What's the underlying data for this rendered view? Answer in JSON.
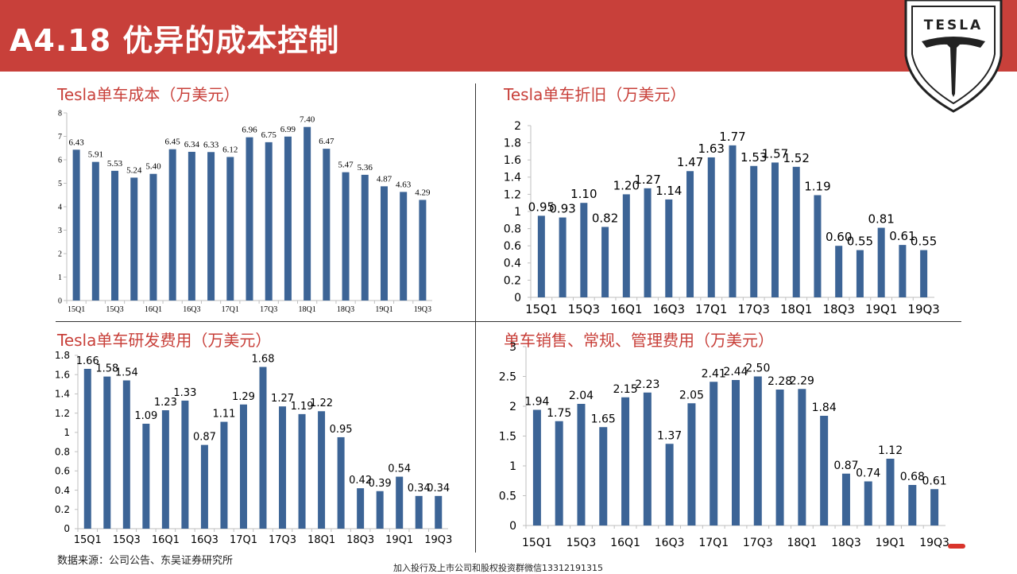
{
  "header": {
    "title": "A4.18  优异的成本控制",
    "logo_text": "TESLA"
  },
  "colors": {
    "header_bg": "#c8403a",
    "title_red": "#c8403a",
    "bar_blue": "#3c6496",
    "axis_gray": "#bfbfbf"
  },
  "source_text": "数据来源：公司公告、东吴证券研究所",
  "footer_note": "加入投行及上市公司和股权投资群微信13312191315",
  "chart_data": [
    {
      "type": "bar",
      "title": "Tesla单车成本（万美元）",
      "categories": [
        "15Q1",
        "15Q2",
        "15Q3",
        "15Q4",
        "16Q1",
        "16Q2",
        "16Q3",
        "16Q4",
        "17Q1",
        "17Q2",
        "17Q3",
        "17Q4",
        "18Q1",
        "18Q2",
        "18Q3",
        "18Q4",
        "19Q1",
        "19Q2",
        "19Q3"
      ],
      "tick_labels": [
        "15Q1",
        "",
        "15Q3",
        "",
        "16Q1",
        "",
        "16Q3",
        "",
        "17Q1",
        "",
        "17Q3",
        "",
        "18Q1",
        "",
        "18Q3",
        "",
        "19Q1",
        "",
        "19Q3"
      ],
      "values": [
        6.43,
        5.91,
        5.53,
        5.24,
        5.4,
        6.45,
        6.34,
        6.33,
        6.12,
        6.96,
        6.75,
        6.99,
        7.4,
        6.47,
        5.47,
        5.36,
        4.87,
        4.63,
        4.29
      ],
      "data_labels": [
        "6.43",
        "5.91",
        "5.53",
        "5.24",
        "5.40",
        "6.45",
        "6.34",
        "6.33",
        "6.12",
        "6.96",
        "6.75",
        "6.99",
        "7.40",
        "6.47",
        "5.47",
        "5.36",
        "4.87",
        "4.63",
        "4.29"
      ],
      "yticks": [
        "0",
        "1",
        "2",
        "3",
        "4",
        "5",
        "6",
        "7",
        "8"
      ],
      "ylim": [
        0,
        8
      ]
    },
    {
      "type": "bar",
      "title": "Tesla单车折旧（万美元）",
      "categories": [
        "15Q1",
        "15Q2",
        "15Q3",
        "15Q4",
        "16Q1",
        "16Q2",
        "16Q3",
        "16Q4",
        "17Q1",
        "17Q2",
        "17Q3",
        "17Q4",
        "18Q1",
        "18Q2",
        "18Q3",
        "18Q4",
        "19Q1",
        "19Q2",
        "19Q3"
      ],
      "tick_labels": [
        "15Q1",
        "",
        "15Q3",
        "",
        "16Q1",
        "",
        "16Q3",
        "",
        "17Q1",
        "",
        "17Q3",
        "",
        "18Q1",
        "",
        "18Q3",
        "",
        "19Q1",
        "",
        "19Q3"
      ],
      "values": [
        0.95,
        0.93,
        1.1,
        0.82,
        1.2,
        1.27,
        1.14,
        1.47,
        1.63,
        1.77,
        1.53,
        1.57,
        1.52,
        1.19,
        0.6,
        0.55,
        0.81,
        0.61,
        0.55
      ],
      "data_labels": [
        "0.95",
        "0.93",
        "1.10",
        "0.82",
        "1.20",
        "1.27",
        "1.14",
        "1.47",
        "1.63",
        "1.77",
        "1.53",
        "1.57",
        "1.52",
        "1.19",
        "0.60",
        "0.55",
        "0.81",
        "0.61",
        "0.55"
      ],
      "yticks": [
        "0",
        "0.2",
        "0.4",
        "0.6",
        "0.8",
        "1",
        "1.2",
        "1.4",
        "1.6",
        "1.8",
        "2"
      ],
      "ylim": [
        0,
        2
      ]
    },
    {
      "type": "bar",
      "title": "Tesla单车研发费用（万美元）",
      "categories": [
        "15Q1",
        "15Q2",
        "15Q3",
        "15Q4",
        "16Q1",
        "16Q2",
        "16Q3",
        "16Q4",
        "17Q1",
        "17Q2",
        "17Q3",
        "17Q4",
        "18Q1",
        "18Q2",
        "18Q3",
        "18Q4",
        "19Q1",
        "19Q2",
        "19Q3"
      ],
      "tick_labels": [
        "15Q1",
        "",
        "15Q3",
        "",
        "16Q1",
        "",
        "16Q3",
        "",
        "17Q1",
        "",
        "17Q3",
        "",
        "18Q1",
        "",
        "18Q3",
        "",
        "19Q1",
        "",
        "19Q3"
      ],
      "values": [
        1.66,
        1.58,
        1.54,
        1.09,
        1.23,
        1.33,
        0.87,
        1.11,
        1.29,
        1.68,
        1.27,
        1.19,
        1.22,
        0.95,
        0.42,
        0.39,
        0.54,
        0.34,
        0.34
      ],
      "data_labels": [
        "1.66",
        "1.58",
        "1.54",
        "1.09",
        "1.23",
        "1.33",
        "0.87",
        "1.11",
        "1.29",
        "1.68",
        "1.27",
        "1.19",
        "1.22",
        "0.95",
        "0.42",
        "0.39",
        "0.54",
        "0.34",
        "0.34"
      ],
      "yticks": [
        "0",
        "0.2",
        "0.4",
        "0.6",
        "0.8",
        "1",
        "1.2",
        "1.4",
        "1.6",
        "1.8"
      ],
      "ylim": [
        0,
        1.8
      ]
    },
    {
      "type": "bar",
      "title": "单车销售、常规、管理费用（万美元）",
      "categories": [
        "15Q1",
        "15Q2",
        "15Q3",
        "15Q4",
        "16Q1",
        "16Q2",
        "16Q3",
        "16Q4",
        "17Q1",
        "17Q2",
        "17Q3",
        "17Q4",
        "18Q1",
        "18Q2",
        "18Q3",
        "18Q4",
        "19Q1",
        "19Q2",
        "19Q3"
      ],
      "tick_labels": [
        "15Q1",
        "",
        "15Q3",
        "",
        "16Q1",
        "",
        "16Q3",
        "",
        "17Q1",
        "",
        "17Q3",
        "",
        "18Q1",
        "",
        "18Q3",
        "",
        "19Q1",
        "",
        "19Q3"
      ],
      "values": [
        1.94,
        1.75,
        2.04,
        1.65,
        2.15,
        2.23,
        1.37,
        2.05,
        2.41,
        2.44,
        2.5,
        2.28,
        2.29,
        1.84,
        0.87,
        0.74,
        1.12,
        0.68,
        0.61
      ],
      "data_labels": [
        "1.94",
        "1.75",
        "2.04",
        "1.65",
        "2.15",
        "2.23",
        "1.37",
        "2.05",
        "2.41",
        "2.44",
        "2.50",
        "2.28",
        "2.29",
        "1.84",
        "0.87",
        "0.74",
        "1.12",
        "0.68",
        "0.61"
      ],
      "yticks": [
        "0",
        "0.5",
        "1",
        "1.5",
        "2",
        "2.5",
        "3"
      ],
      "ylim": [
        0,
        3
      ]
    }
  ]
}
